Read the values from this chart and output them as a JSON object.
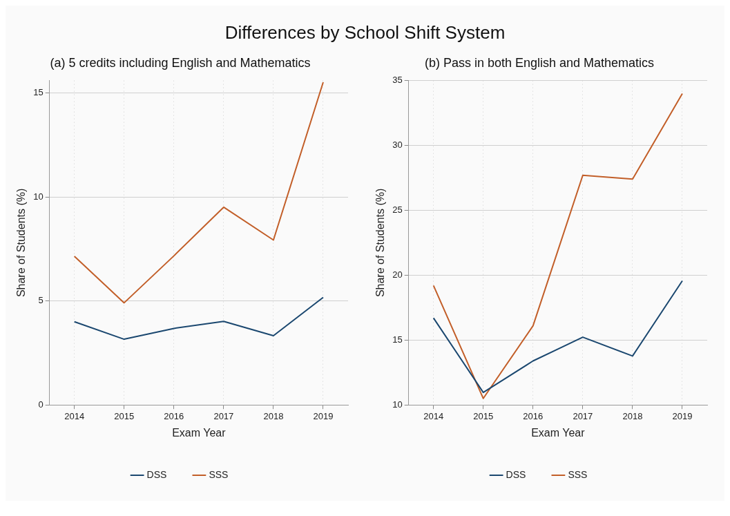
{
  "chart_data": [
    {
      "type": "line",
      "title": "Differences by School Shift System",
      "subtitle": "(a) 5 credits including English and Mathematics",
      "xlabel": "Exam Year",
      "ylabel": "Share of Students (%)",
      "categories": [
        "2014",
        "2015",
        "2016",
        "2017",
        "2018",
        "2019"
      ],
      "ylim": [
        0,
        15.6
      ],
      "yticks": [
        0,
        5,
        10,
        15
      ],
      "grid": true,
      "legend": "bottom",
      "marker": "none",
      "line_style": "solid",
      "series": [
        {
          "name": "DSS",
          "color": "#1a476f",
          "values": [
            4.0,
            3.16,
            3.68,
            4.02,
            3.33,
            5.17
          ]
        },
        {
          "name": "SSS",
          "color": "#c25e28",
          "values": [
            7.15,
            4.91,
            7.17,
            9.51,
            7.93,
            15.52
          ]
        }
      ]
    },
    {
      "type": "line",
      "subtitle": "(b) Pass in both English and Mathematics",
      "xlabel": "Exam Year",
      "ylabel": "Share of Students (%)",
      "categories": [
        "2014",
        "2015",
        "2016",
        "2017",
        "2018",
        "2019"
      ],
      "ylim": [
        10,
        35
      ],
      "yticks": [
        10,
        15,
        20,
        25,
        30,
        35
      ],
      "grid": true,
      "legend": "bottom",
      "marker": "none",
      "line_style": "solid",
      "series": [
        {
          "name": "DSS",
          "color": "#1a476f",
          "values": [
            16.7,
            10.96,
            13.39,
            15.22,
            13.77,
            19.57
          ]
        },
        {
          "name": "SSS",
          "color": "#c25e28",
          "values": [
            19.2,
            10.5,
            16.1,
            27.7,
            27.4,
            34.0
          ]
        }
      ]
    }
  ]
}
